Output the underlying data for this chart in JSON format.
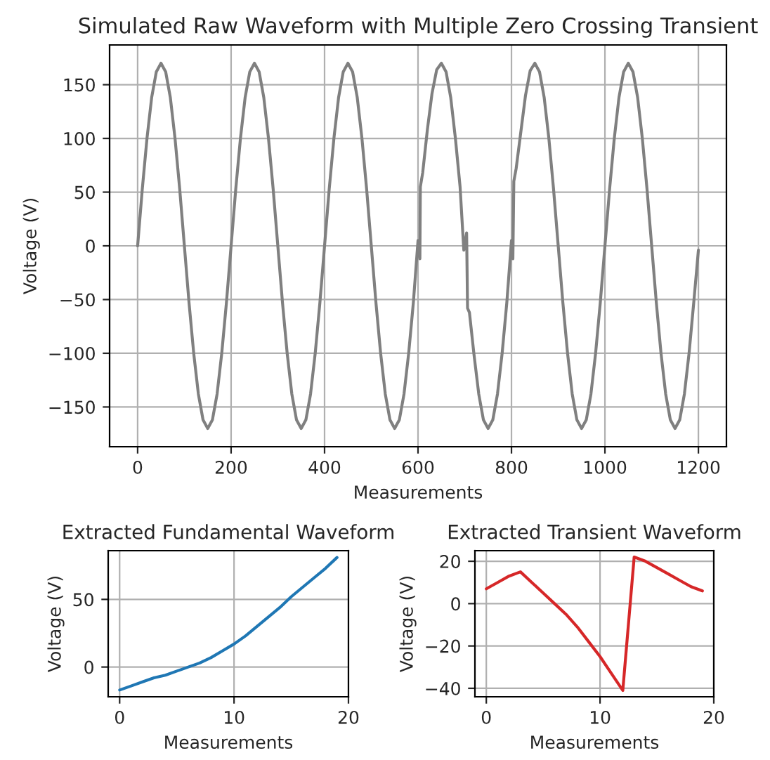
{
  "chart_data": [
    {
      "type": "line",
      "title": "Simulated Raw Waveform with Multiple Zero Crossing Transient",
      "xlabel": "Measurements",
      "ylabel": "Voltage (V)",
      "xlim": [
        -60,
        1260
      ],
      "xticks": [
        0,
        200,
        400,
        600,
        800,
        1000,
        1200
      ],
      "ylim": [
        -187,
        187
      ],
      "yticks": [
        -150,
        -100,
        -50,
        0,
        50,
        100,
        150
      ],
      "grid": true,
      "series": [
        {
          "color": "#808080",
          "x": [
            0,
            10,
            20,
            30,
            40,
            50,
            60,
            70,
            80,
            90,
            100,
            110,
            120,
            130,
            140,
            150,
            160,
            170,
            180,
            190,
            200,
            210,
            220,
            230,
            240,
            250,
            260,
            270,
            280,
            290,
            300,
            310,
            320,
            330,
            340,
            350,
            360,
            370,
            380,
            390,
            400,
            410,
            420,
            430,
            440,
            450,
            460,
            470,
            480,
            490,
            500,
            510,
            520,
            530,
            540,
            550,
            560,
            570,
            580,
            590,
            600,
            604,
            605,
            610,
            620,
            630,
            640,
            650,
            660,
            670,
            680,
            690,
            698,
            704,
            706,
            710,
            720,
            730,
            740,
            750,
            760,
            770,
            780,
            790,
            800,
            803,
            805,
            810,
            820,
            830,
            840,
            850,
            860,
            870,
            880,
            890,
            900,
            910,
            920,
            930,
            940,
            950,
            960,
            970,
            980,
            990,
            1000,
            1010,
            1020,
            1030,
            1040,
            1050,
            1060,
            1070,
            1080,
            1090,
            1100,
            1110,
            1120,
            1130,
            1140,
            1150,
            1160,
            1170,
            1180,
            1190,
            1200
          ],
          "values": [
            0,
            53,
            100,
            138,
            162,
            170,
            162,
            138,
            100,
            53,
            0,
            -53,
            -100,
            -138,
            -162,
            -170,
            -162,
            -138,
            -100,
            -53,
            0,
            53,
            100,
            138,
            162,
            170,
            162,
            138,
            100,
            53,
            0,
            -53,
            -100,
            -138,
            -162,
            -170,
            -162,
            -138,
            -100,
            -53,
            0,
            53,
            100,
            138,
            162,
            170,
            162,
            138,
            100,
            53,
            0,
            -53,
            -100,
            -138,
            -162,
            -170,
            -162,
            -138,
            -100,
            -53,
            5,
            -12,
            55,
            68,
            108,
            142,
            164,
            170,
            162,
            138,
            100,
            55,
            -4,
            12,
            -58,
            -62,
            -102,
            -138,
            -162,
            -170,
            -162,
            -138,
            -100,
            -53,
            5,
            -12,
            60,
            72,
            106,
            140,
            163,
            170,
            162,
            138,
            100,
            53,
            0,
            -53,
            -100,
            -138,
            -162,
            -170,
            -162,
            -138,
            -100,
            -53,
            0,
            53,
            100,
            138,
            162,
            170,
            162,
            138,
            100,
            53,
            0,
            -53,
            -100,
            -138,
            -162,
            -170,
            -162,
            -138,
            -100,
            -53,
            -4
          ]
        }
      ]
    },
    {
      "type": "line",
      "title": "Extracted Fundamental Waveform",
      "xlabel": "Measurements",
      "ylabel": "Voltage (V)",
      "xlim": [
        -1,
        20
      ],
      "xticks": [
        0,
        10,
        20
      ],
      "ylim": [
        -22,
        86
      ],
      "yticks": [
        0,
        50
      ],
      "grid": true,
      "series": [
        {
          "color": "#1f77b4",
          "x": [
            0,
            1,
            2,
            3,
            4,
            5,
            6,
            7,
            8,
            9,
            10,
            11,
            12,
            13,
            14,
            15,
            16,
            17,
            18,
            19
          ],
          "values": [
            -17,
            -14,
            -11,
            -8,
            -6,
            -3,
            0,
            3,
            7,
            12,
            17,
            23,
            30,
            37,
            44,
            52,
            59,
            66,
            73,
            81
          ]
        }
      ]
    },
    {
      "type": "line",
      "title": "Extracted Transient Waveform",
      "xlabel": "Measurements",
      "ylabel": "Voltage (V)",
      "xlim": [
        -1,
        20
      ],
      "xticks": [
        0,
        10,
        20
      ],
      "ylim": [
        -44,
        25
      ],
      "yticks": [
        -40,
        -20,
        0,
        20
      ],
      "grid": true,
      "series": [
        {
          "color": "#d62728",
          "x": [
            0,
            1,
            2,
            3,
            4,
            5,
            6,
            7,
            8,
            9,
            10,
            11,
            12,
            13,
            14,
            15,
            16,
            17,
            18,
            19
          ],
          "values": [
            7,
            10,
            13,
            15,
            10,
            5,
            0,
            -5,
            -11,
            -18,
            -25,
            -33,
            -41,
            22,
            20,
            17,
            14,
            11,
            8,
            6
          ]
        }
      ]
    }
  ]
}
